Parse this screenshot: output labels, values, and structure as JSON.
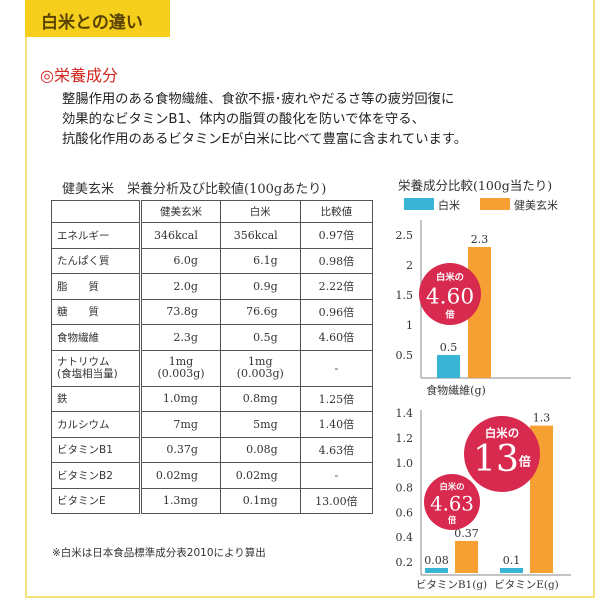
{
  "header": {
    "tab_title": "白米との違い",
    "section_title": "◎栄養成分",
    "paragraph": [
      "整腸作用のある食物繊維、食欲不振･疲れやだるさ等の疲労回復に",
      "効果的なビタミンB1、体内の脂質の酸化を防いで体を守る、",
      "抗酸化作用のあるビタミンEが白米に比べて豊富に含まれています。"
    ]
  },
  "table": {
    "title": "健美玄米　栄養分析及び比較値(100gあたり)",
    "headers": [
      "",
      "健美玄米",
      "白米",
      "比較値"
    ],
    "rows": [
      [
        "エネルギー",
        "346kcal",
        "356kcal",
        "0.97倍"
      ],
      [
        "たんぱく質",
        "6.0g",
        "6.1g",
        "0.98倍"
      ],
      [
        "脂　　質",
        "2.0g",
        "0.9g",
        "2.22倍"
      ],
      [
        "糖　　質",
        "73.8g",
        "76.6g",
        "0.96倍"
      ],
      [
        "食物繊維",
        "2.3g",
        "0.5g",
        "4.60倍"
      ],
      [
        "ナトリウム\n(食塩相当量)",
        "1mg\n(0.003g)",
        "1mg\n(0.003g)",
        "-"
      ],
      [
        "鉄",
        "1.0mg",
        "0.8mg",
        "1.25倍"
      ],
      [
        "カルシウム",
        "7mg",
        "5mg",
        "1.40倍"
      ],
      [
        "ビタミンB1",
        "0.37g",
        "0.08g",
        "4.63倍"
      ],
      [
        "ビタミンB2",
        "0.02mg",
        "0.02mg",
        "-"
      ],
      [
        "ビタミンE",
        "1.3mg",
        "0.1mg",
        "13.00倍"
      ]
    ],
    "footnote": "※白米は日本食品標準成分表2010により算出"
  },
  "chart_data": [
    {
      "type": "bar",
      "title": "栄養成分比較(100g当たり)",
      "legend": [
        "白米",
        "健美玄米"
      ],
      "colors": [
        "#3ab4d4",
        "#f6a033"
      ],
      "categories": [
        "食物繊維(g)"
      ],
      "series": [
        {
          "name": "白米",
          "values": [
            0.5
          ]
        },
        {
          "name": "健美玄米",
          "values": [
            2.3
          ]
        }
      ],
      "yticks": [
        "0.5",
        "1",
        "1.5",
        "2",
        "2.5"
      ],
      "ylim": [
        0,
        2.5
      ],
      "badges": [
        {
          "top": "白米の",
          "value": "4.60",
          "bottom": "倍"
        }
      ]
    },
    {
      "type": "bar",
      "categories": [
        "ビタミンB1(g)",
        "ビタミンE(g)"
      ],
      "series": [
        {
          "name": "白米",
          "values": [
            0.08,
            0.1
          ]
        },
        {
          "name": "健美玄米",
          "values": [
            0.37,
            1.3
          ]
        }
      ],
      "yticks": [
        "0.2",
        "0.4",
        "0.6",
        "0.8",
        "1.0",
        "1.2",
        "1.4"
      ],
      "ylim": [
        0.2,
        1.4
      ],
      "badges": [
        {
          "top": "白米の",
          "value": "4.63",
          "bottom": "倍"
        },
        {
          "top": "白米の",
          "value": "13",
          "bottom": "倍"
        }
      ]
    }
  ]
}
